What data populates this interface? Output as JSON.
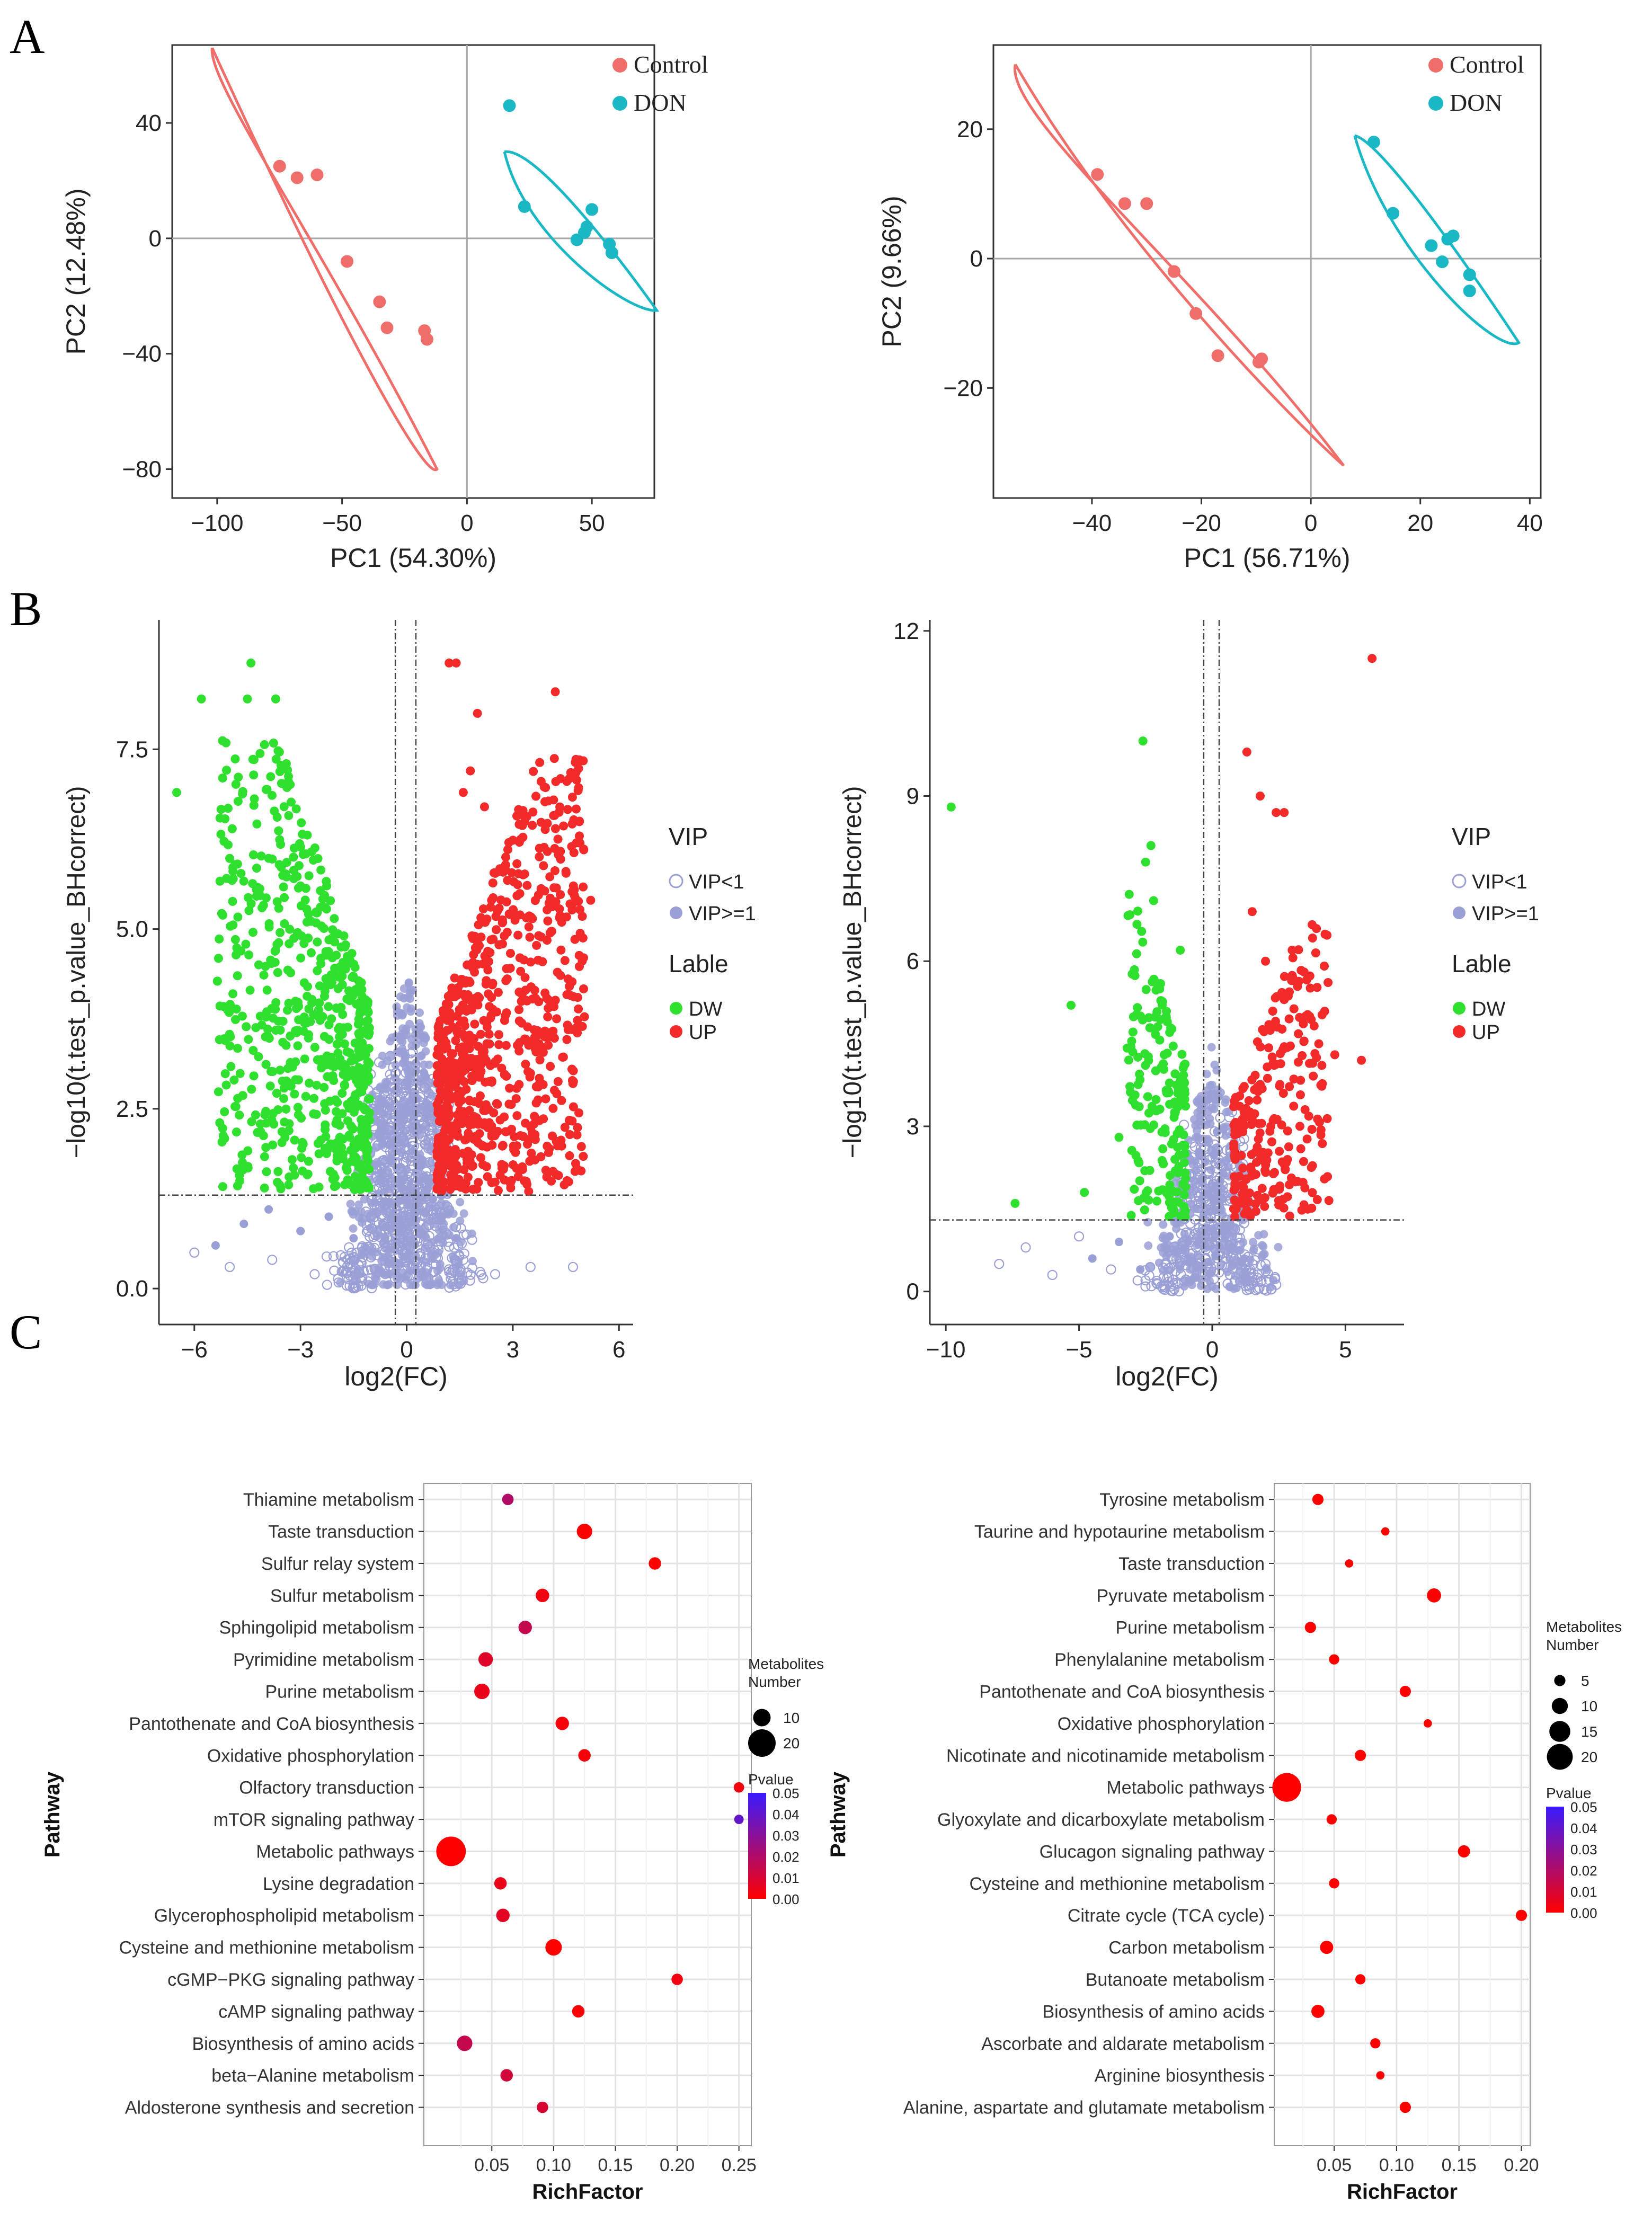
{
  "panel_letters": [
    "A",
    "B",
    "C"
  ],
  "colors": {
    "control": "#F06E6A",
    "don": "#1AB8C4",
    "dw": "#2FE02F",
    "up": "#F22A2A",
    "vip": "#9A9FD6",
    "axis": "#333333",
    "grid_major": "#E3E3E3",
    "refline": "#A8A8A8",
    "p_low": "#FF0000",
    "p_high": "#3A1BFF"
  },
  "chart_data": [
    {
      "id": "pca1",
      "type": "scatter",
      "title": "",
      "xlabel": "PC1 (54.30%)",
      "ylabel": "PC2 (12.48%)",
      "xlim": [
        -118,
        75
      ],
      "ylim": [
        -90,
        67
      ],
      "xticks": [
        -100,
        -50,
        0,
        50
      ],
      "yticks": [
        -80,
        -40,
        0,
        40
      ],
      "legend": [
        "Control",
        "DON"
      ],
      "series": [
        {
          "name": "Control",
          "x": [
            -75,
            -68,
            -60,
            -48,
            -35,
            -32,
            -17,
            -16
          ],
          "y": [
            25,
            21,
            22,
            -8,
            -22,
            -31,
            -32,
            -35
          ]
        },
        {
          "name": "DON",
          "x": [
            17,
            23,
            44,
            47,
            48,
            50,
            57,
            58
          ],
          "y": [
            46,
            11,
            -0.5,
            2,
            4,
            10,
            -2,
            -5
          ]
        }
      ],
      "ellipses": [
        {
          "name": "Control",
          "points": [
            [
              -102,
              66
            ],
            [
              -104,
              54
            ],
            [
              -58,
              -2
            ],
            [
              -12,
              -80
            ],
            [
              -16,
              -84
            ],
            [
              -46,
              -40
            ]
          ]
        },
        {
          "name": "DON",
          "points": [
            [
              15,
              30
            ],
            [
              30,
              32
            ],
            [
              76,
              -25
            ],
            [
              65,
              -26
            ],
            [
              23,
              0
            ]
          ]
        }
      ]
    },
    {
      "id": "pca2",
      "type": "scatter",
      "title": "",
      "xlabel": "PC1 (56.71%)",
      "ylabel": "PC2 (9.66%)",
      "xlim": [
        -58,
        42
      ],
      "ylim": [
        -37,
        33
      ],
      "xticks": [
        -40,
        -20,
        0,
        20,
        40
      ],
      "yticks": [
        -20,
        0,
        20
      ],
      "legend": [
        "Control",
        "DON"
      ],
      "series": [
        {
          "name": "Control",
          "x": [
            -39,
            -34,
            -30,
            -25,
            -21,
            -17,
            -9.5,
            -9
          ],
          "y": [
            13,
            8.5,
            8.5,
            -2,
            -8.5,
            -15,
            -16,
            -15.5
          ]
        },
        {
          "name": "DON",
          "x": [
            11.5,
            15,
            22,
            24,
            25,
            26,
            29,
            29
          ],
          "y": [
            18,
            7,
            2,
            -0.5,
            3,
            3.5,
            -2.5,
            -5
          ]
        }
      ],
      "ellipses": [
        {
          "name": "Control",
          "points": [
            [
              -54,
              30
            ],
            [
              -56,
              22
            ],
            [
              -20,
              -3
            ],
            [
              6,
              -32
            ],
            [
              -2,
              -26
            ],
            [
              -34,
              1
            ]
          ]
        },
        {
          "name": "DON",
          "points": [
            [
              8,
              19
            ],
            [
              14,
              18
            ],
            [
              38,
              -13
            ],
            [
              34,
              -15
            ],
            [
              14,
              1
            ]
          ]
        }
      ]
    },
    {
      "id": "volcano1",
      "type": "scatter",
      "title": "",
      "xlabel": "log2(FC)",
      "ylabel": "-log10(t.test_p.value_BHcorrect)",
      "xlim": [
        -7,
        6.4
      ],
      "ylim": [
        -0.5,
        9.3
      ],
      "xticks": [
        -6,
        -3,
        0,
        3,
        6
      ],
      "ytick_labels": [
        "0.0",
        "2.5",
        "5.0",
        "7.5"
      ],
      "threshold_x": [
        -0.32,
        0.26
      ],
      "threshold_y": 1.3,
      "legend_vip_title": "VIP",
      "legend_vip": [
        "VIP<1",
        "VIP>=1"
      ],
      "legend_label_title": "Lable",
      "legend_label": [
        "DW",
        "UP"
      ],
      "series": [
        {
          "name": "DW",
          "x": [
            -6.5,
            -5.8,
            -5.2,
            -4.9,
            -4.5,
            -4.4,
            -3.7,
            -3.4,
            -3.2,
            -3.0,
            -2.9,
            -2.8,
            -2.5,
            -2.3,
            -2.1,
            -1.9,
            -1.7,
            -1.5,
            -1.3,
            -1.1
          ],
          "y": [
            6.9,
            8.2,
            7.1,
            5.7,
            8.2,
            8.7,
            8.2,
            7.3,
            6.0,
            5.6,
            4.8,
            4.2,
            3.8,
            5.3,
            4.6,
            3.5,
            3.0,
            2.5,
            2.0,
            1.8
          ]
        },
        {
          "name": "UP",
          "x": [
            1.2,
            1.4,
            1.6,
            1.8,
            2.0,
            2.2,
            2.4,
            2.6,
            2.8,
            3.0,
            3.2,
            3.4,
            3.6,
            3.8,
            4.0,
            4.2,
            4.5,
            4.8,
            5.0,
            5.2
          ],
          "y": [
            8.7,
            8.7,
            6.9,
            7.2,
            8.0,
            6.7,
            5.4,
            5.8,
            6.0,
            5.2,
            4.6,
            4.0,
            3.6,
            3.3,
            3.9,
            8.3,
            5.8,
            6.2,
            4.6,
            5.4
          ]
        },
        {
          "name": "VIP<1",
          "x": [
            -6.0,
            -5.0,
            -3.8,
            -2.6,
            -1.4,
            -0.6,
            0.0,
            0.4,
            0.9,
            1.6,
            2.5,
            3.5,
            4.7
          ],
          "y": [
            0.5,
            0.3,
            0.4,
            0.2,
            0.5,
            0.8,
            0.6,
            0.3,
            0.6,
            0.4,
            0.2,
            0.3,
            0.3
          ]
        },
        {
          "name": "VIP>=1",
          "x": [
            -5.4,
            -4.6,
            -3.9,
            -3.0,
            -2.2,
            -1.5,
            -0.9,
            -0.5,
            -0.2,
            0.2,
            0.6,
            1.0,
            1.4
          ],
          "y": [
            0.6,
            0.9,
            1.1,
            0.8,
            1.0,
            0.7,
            1.2,
            2.0,
            3.5,
            2.2,
            1.4,
            1.0,
            0.7
          ]
        }
      ]
    },
    {
      "id": "volcano2",
      "type": "scatter",
      "title": "",
      "xlabel": "log2(FC)",
      "ylabel": "-log10(t.test_p.value_BHcorrect)",
      "xlim": [
        -10.6,
        7.2
      ],
      "ylim": [
        -0.6,
        12.2
      ],
      "xticks": [
        -10,
        -5,
        0,
        5
      ],
      "yticks": [
        0,
        3,
        6,
        9,
        12
      ],
      "threshold_x": [
        -0.32,
        0.26
      ],
      "threshold_y": 1.3,
      "legend_vip_title": "VIP",
      "legend_vip": [
        "VIP<1",
        "VIP>=1"
      ],
      "legend_label_title": "Lable",
      "legend_label": [
        "DW",
        "UP"
      ],
      "series": [
        {
          "name": "DW",
          "x": [
            -9.8,
            -7.4,
            -5.3,
            -4.8,
            -3.5,
            -2.6,
            -2.5,
            -2.3,
            -2.2,
            -2.0,
            -1.8,
            -1.6,
            -1.4,
            -1.2,
            -1.0
          ],
          "y": [
            8.8,
            1.6,
            5.2,
            1.8,
            2.8,
            10.0,
            7.8,
            8.1,
            7.1,
            5.5,
            4.3,
            3.4,
            2.4,
            6.2,
            1.9
          ]
        },
        {
          "name": "UP",
          "x": [
            6.0,
            1.3,
            1.8,
            2.4,
            2.7,
            1.5,
            2.0,
            3.0,
            3.5,
            4.0,
            4.6,
            5.6,
            2.2,
            3.2,
            0.9
          ],
          "y": [
            11.5,
            9.8,
            9.0,
            8.7,
            8.7,
            6.9,
            6.0,
            6.2,
            5.0,
            4.5,
            4.3,
            4.2,
            3.0,
            2.0,
            1.5
          ]
        },
        {
          "name": "VIP<1",
          "x": [
            -8.0,
            -7.0,
            -6.0,
            -5.0,
            -3.8,
            -2.8,
            -1.5,
            -0.6,
            0.5,
            1.2,
            2.0
          ],
          "y": [
            0.5,
            0.8,
            0.3,
            1.0,
            0.4,
            0.2,
            0.6,
            0.8,
            0.6,
            0.3,
            0.5
          ]
        },
        {
          "name": "VIP>=1",
          "x": [
            -4.5,
            -3.5,
            -2.7,
            -1.6,
            -0.9,
            -0.5,
            -0.1,
            0.3,
            0.7,
            1.2
          ],
          "y": [
            0.6,
            0.9,
            0.4,
            1.0,
            0.9,
            2.5,
            3.5,
            2.0,
            1.2,
            0.6
          ]
        }
      ]
    },
    {
      "id": "kegg1",
      "type": "scatter",
      "title": "",
      "xlabel": "RichFactor",
      "ylabel": "Pathway",
      "xlim": [
        -0.005,
        0.26
      ],
      "xticks": [
        0.05,
        0.1,
        0.15,
        0.2,
        0.25
      ],
      "xtick_labels": [
        "0.05",
        "0.10",
        "0.15",
        "0.20",
        "0.25"
      ],
      "categories": [
        "Thiamine metabolism",
        "Taste transduction",
        "Sulfur relay system",
        "Sulfur metabolism",
        "Sphingolipid metabolism",
        "Pyrimidine metabolism",
        "Purine metabolism",
        "Pantothenate and CoA biosynthesis",
        "Oxidative phosphorylation",
        "Olfactory transduction",
        "mTOR signaling pathway",
        "Metabolic pathways",
        "Lysine degradation",
        "Glycerophospholipid metabolism",
        "Cysteine and methionine metabolism",
        "cGMP-PKG signaling pathway",
        "cAMP signaling pathway",
        "Biosynthesis of amino acids",
        "beta-Alanine metabolism",
        "Aldosterone synthesis and secretion"
      ],
      "richfactor": [
        0.063,
        0.125,
        0.182,
        0.091,
        0.077,
        0.045,
        0.042,
        0.107,
        0.125,
        0.25,
        0.25,
        0.017,
        0.057,
        0.059,
        0.1,
        0.2,
        0.12,
        0.028,
        0.062,
        0.091
      ],
      "metabolites": [
        4,
        8,
        5,
        6,
        6,
        7,
        8,
        6,
        5,
        3,
        2,
        22,
        5,
        6,
        9,
        4,
        5,
        8,
        5,
        4
      ],
      "pvalue": [
        0.02,
        0.0,
        0.0,
        0.003,
        0.015,
        0.008,
        0.005,
        0.002,
        0.002,
        0.003,
        0.04,
        0.0,
        0.005,
        0.007,
        0.0,
        0.003,
        0.001,
        0.015,
        0.012,
        0.01
      ],
      "size_legend_title": [
        "Metabolites",
        "Number"
      ],
      "size_legend": [
        10,
        20
      ],
      "color_legend_title": "Pvalue",
      "color_legend": [
        "0.05",
        "0.04",
        "0.03",
        "0.02",
        "0.01",
        "0.00"
      ]
    },
    {
      "id": "kegg2",
      "type": "scatter",
      "title": "",
      "xlabel": "RichFactor",
      "ylabel": "Pathway",
      "xlim": [
        0.002,
        0.207
      ],
      "xticks": [
        0.05,
        0.1,
        0.15,
        0.2
      ],
      "xtick_labels": [
        "0.05",
        "0.10",
        "0.15",
        "0.20"
      ],
      "categories": [
        "Tyrosine metabolism",
        "Taurine and hypotaurine metabolism",
        "Taste transduction",
        "Pyruvate metabolism",
        "Purine metabolism",
        "Phenylalanine metabolism",
        "Pantothenate and CoA biosynthesis",
        "Oxidative phosphorylation",
        "Nicotinate and nicotinamide metabolism",
        "Metabolic pathways",
        "Glyoxylate and dicarboxylate metabolism",
        "Glucagon signaling pathway",
        "Cysteine and methionine metabolism",
        "Citrate cycle (TCA cycle)",
        "Carbon metabolism",
        "Butanoate metabolism",
        "Biosynthesis of amino acids",
        "Ascorbate and aldarate metabolism",
        "Arginine biosynthesis",
        "Alanine, aspartate and glutamate metabolism"
      ],
      "richfactor": [
        0.037,
        0.091,
        0.062,
        0.13,
        0.031,
        0.05,
        0.107,
        0.125,
        0.071,
        0.012,
        0.048,
        0.154,
        0.05,
        0.2,
        0.044,
        0.071,
        0.037,
        0.083,
        0.087,
        0.107
      ],
      "metabolites": [
        5,
        2,
        2,
        8,
        5,
        4,
        5,
        2,
        5,
        23,
        4,
        6,
        4,
        5,
        7,
        4,
        7,
        4,
        2,
        5
      ],
      "pvalue": [
        0.0,
        0.0,
        0.0,
        0.0,
        0.0,
        0.0,
        0.0,
        0.0,
        0.0,
        0.0,
        0.0,
        0.0,
        0.0,
        0.0,
        0.0,
        0.0,
        0.0,
        0.0,
        0.0,
        0.0
      ],
      "size_legend_title": [
        "Metabolites",
        "Number"
      ],
      "size_legend": [
        5,
        10,
        15,
        20
      ],
      "color_legend_title": "Pvalue",
      "color_legend": [
        "0.05",
        "0.04",
        "0.03",
        "0.02",
        "0.01",
        "0.00"
      ]
    }
  ]
}
